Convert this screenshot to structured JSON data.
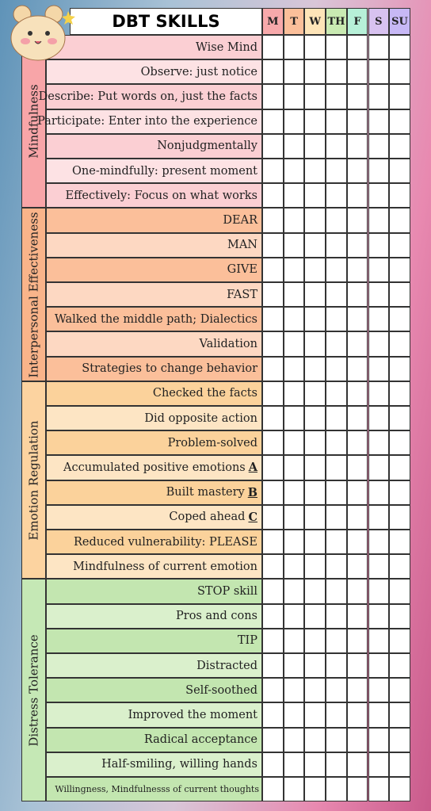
{
  "header": {
    "title": "DBT SKILLS",
    "days": [
      "M",
      "T",
      "W",
      "TH",
      "F",
      "S",
      "SU"
    ]
  },
  "sections": [
    {
      "label": "Mindfulness",
      "skills": [
        {
          "text": "Wise Mind"
        },
        {
          "text": "Observe: just notice"
        },
        {
          "text": "Describe: Put words on, just the facts"
        },
        {
          "text": "Participate: Enter into the experience"
        },
        {
          "text": "Nonjudgmentally"
        },
        {
          "text": "One-mindfully: present moment"
        },
        {
          "text": "Effectively: Focus on what works"
        }
      ]
    },
    {
      "label": "Interpersonal Effectiveness",
      "skills": [
        {
          "text": "DEAR"
        },
        {
          "text": "MAN"
        },
        {
          "text": "GIVE"
        },
        {
          "text": "FAST"
        },
        {
          "text": "Walked the middle path; Dialectics"
        },
        {
          "text": "Validation"
        },
        {
          "text": "Strategies to change behavior"
        }
      ]
    },
    {
      "label": "Emotion Regulation",
      "skills": [
        {
          "text": "Checked the facts"
        },
        {
          "text": "Did opposite action"
        },
        {
          "text": "Problem-solved"
        },
        {
          "text": "Accumulated positive emotions",
          "letter": "A"
        },
        {
          "text": "Built mastery",
          "letter": "B"
        },
        {
          "text": "Coped ahead",
          "letter": "C"
        },
        {
          "text": "Reduced vulnerability: PLEASE"
        },
        {
          "text": "Mindfulness of current emotion"
        }
      ]
    },
    {
      "label": "Distress Tolerance",
      "skills": [
        {
          "text": "STOP skill"
        },
        {
          "text": "Pros and cons"
        },
        {
          "text": "TIP"
        },
        {
          "text": "Distracted"
        },
        {
          "text": "Self-soothed"
        },
        {
          "text": "Improved the moment"
        },
        {
          "text": "Radical acceptance"
        },
        {
          "text": "Half-smiling, willing hands"
        },
        {
          "text": "Willingness, Mindfulnesss of current thoughts"
        }
      ]
    }
  ]
}
